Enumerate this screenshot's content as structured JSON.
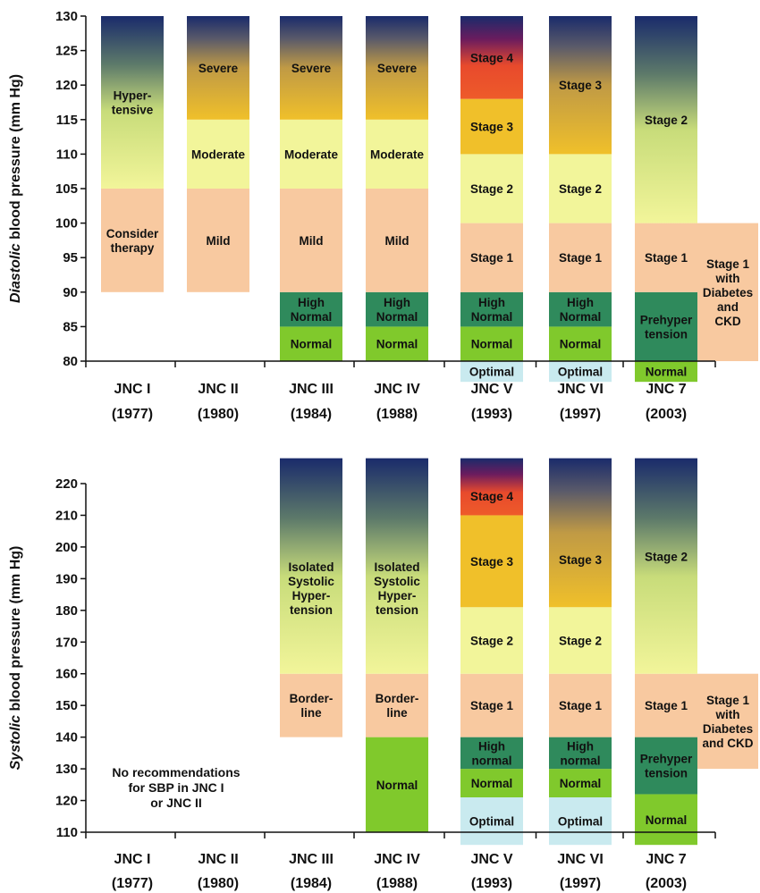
{
  "colors": {
    "peach": "#f8c9a0",
    "paleYellow": "#f2f59a",
    "green": "#80c92c",
    "darkGreen": "#2f8a5c",
    "lightBlue": "#c9eaef",
    "orange": "#f0c02a",
    "red": "#ee5b2a",
    "navy": "#1a2b6b",
    "purple": "#6b1c5e"
  },
  "columns": [
    {
      "name": "JNC I",
      "year": "(1977)"
    },
    {
      "name": "JNC II",
      "year": "(1980)"
    },
    {
      "name": "JNC III",
      "year": "(1984)"
    },
    {
      "name": "JNC IV",
      "year": "(1988)"
    },
    {
      "name": "JNC V",
      "year": "(1993)"
    },
    {
      "name": "JNC VI",
      "year": "(1997)"
    },
    {
      "name": "JNC 7",
      "year": "(2003)"
    }
  ],
  "chart_data": [
    {
      "type": "bar",
      "ylabel_italic": "Diastolic",
      "ylabel_rest": " blood pressure (mm Hg)",
      "ylim": [
        80,
        130
      ],
      "ticks": [
        80,
        85,
        90,
        95,
        100,
        105,
        110,
        115,
        120,
        125,
        130
      ],
      "categories": [
        "JNC I (1977)",
        "JNC II (1980)",
        "JNC III (1984)",
        "JNC IV (1988)",
        "JNC V (1993)",
        "JNC VI (1997)",
        "JNC 7 (2003)"
      ],
      "columns": [
        {
          "bands": [
            {
              "from": 90,
              "to": 105,
              "fill": "peach",
              "label": [
                "Consider",
                "therapy"
              ]
            },
            {
              "from": 105,
              "to": 130,
              "fill": "gradYellowNavy",
              "label": [
                "Hyper-",
                "tensive"
              ]
            }
          ]
        },
        {
          "bands": [
            {
              "from": 90,
              "to": 105,
              "fill": "peach",
              "label": [
                "Mild"
              ]
            },
            {
              "from": 105,
              "to": 115,
              "fill": "paleYellow",
              "label": [
                "Moderate"
              ]
            },
            {
              "from": 115,
              "to": 130,
              "fill": "gradOrangeNavy",
              "label": [
                "Severe"
              ]
            }
          ]
        },
        {
          "bands": [
            {
              "from": 80,
              "to": 85,
              "fill": "green",
              "label": [
                "Normal"
              ]
            },
            {
              "from": 85,
              "to": 90,
              "fill": "darkGreen",
              "label": [
                "High",
                "Normal"
              ]
            },
            {
              "from": 90,
              "to": 105,
              "fill": "peach",
              "label": [
                "Mild"
              ]
            },
            {
              "from": 105,
              "to": 115,
              "fill": "paleYellow",
              "label": [
                "Moderate"
              ]
            },
            {
              "from": 115,
              "to": 130,
              "fill": "gradOrangeNavy",
              "label": [
                "Severe"
              ]
            }
          ]
        },
        {
          "bands": [
            {
              "from": 80,
              "to": 85,
              "fill": "green",
              "label": [
                "Normal"
              ]
            },
            {
              "from": 85,
              "to": 90,
              "fill": "darkGreen",
              "label": [
                "High",
                "Normal"
              ]
            },
            {
              "from": 90,
              "to": 105,
              "fill": "peach",
              "label": [
                "Mild"
              ]
            },
            {
              "from": 105,
              "to": 115,
              "fill": "paleYellow",
              "label": [
                "Moderate"
              ]
            },
            {
              "from": 115,
              "to": 130,
              "fill": "gradOrangeNavy",
              "label": [
                "Severe"
              ]
            }
          ]
        },
        {
          "bands": [
            {
              "from": 77,
              "to": 80,
              "fill": "lightBlue",
              "label": [
                "Optimal"
              ]
            },
            {
              "from": 80,
              "to": 85,
              "fill": "green",
              "label": [
                "Normal"
              ]
            },
            {
              "from": 85,
              "to": 90,
              "fill": "darkGreen",
              "label": [
                "High",
                "Normal"
              ]
            },
            {
              "from": 90,
              "to": 100,
              "fill": "peach",
              "label": [
                "Stage 1"
              ]
            },
            {
              "from": 100,
              "to": 110,
              "fill": "paleYellow",
              "label": [
                "Stage 2"
              ]
            },
            {
              "from": 110,
              "to": 118,
              "fill": "orange",
              "label": [
                "Stage 3"
              ]
            },
            {
              "from": 118,
              "to": 130,
              "fill": "gradRedNavy",
              "label": [
                "Stage 4"
              ]
            }
          ]
        },
        {
          "bands": [
            {
              "from": 77,
              "to": 80,
              "fill": "lightBlue",
              "label": [
                "Optimal"
              ]
            },
            {
              "from": 80,
              "to": 85,
              "fill": "green",
              "label": [
                "Normal"
              ]
            },
            {
              "from": 85,
              "to": 90,
              "fill": "darkGreen",
              "label": [
                "High",
                "Normal"
              ]
            },
            {
              "from": 90,
              "to": 100,
              "fill": "peach",
              "label": [
                "Stage 1"
              ]
            },
            {
              "from": 100,
              "to": 110,
              "fill": "paleYellow",
              "label": [
                "Stage 2"
              ]
            },
            {
              "from": 110,
              "to": 130,
              "fill": "gradOrangeNavy",
              "label": [
                "Stage 3"
              ]
            }
          ]
        },
        {
          "bands": [
            {
              "from": 77,
              "to": 80,
              "fill": "green",
              "label": [
                "Normal"
              ]
            },
            {
              "from": 80,
              "to": 90,
              "fill": "darkGreen",
              "label": [
                "Prehyper",
                "tension"
              ]
            },
            {
              "from": 90,
              "to": 100,
              "fill": "peach",
              "label": [
                "Stage 1"
              ]
            },
            {
              "from": 100,
              "to": 130,
              "fill": "gradYellowNavy",
              "label": [
                "Stage 2"
              ]
            }
          ]
        }
      ],
      "side_box": {
        "from": 80,
        "to": 100,
        "fill": "peach",
        "label": [
          "Stage 1",
          "with",
          "Diabetes",
          "and",
          "CKD"
        ]
      }
    },
    {
      "type": "bar",
      "ylabel_italic": "Systolic",
      "ylabel_rest": " blood pressure (mm Hg)",
      "ylim": [
        110,
        220
      ],
      "ticks": [
        110,
        120,
        130,
        140,
        150,
        160,
        170,
        180,
        190,
        200,
        210,
        220
      ],
      "categories": [
        "JNC I (1977)",
        "JNC II (1980)",
        "JNC III (1984)",
        "JNC IV (1988)",
        "JNC V (1993)",
        "JNC VI (1997)",
        "JNC 7 (2003)"
      ],
      "note": [
        "No recommendations",
        "for SBP in JNC I",
        "or JNC II"
      ],
      "columns": [
        {
          "bands": []
        },
        {
          "bands": []
        },
        {
          "bands": [
            {
              "from": 140,
              "to": 160,
              "fill": "peach",
              "label": [
                "Border-",
                "line"
              ]
            },
            {
              "from": 160,
              "to": 228,
              "fill": "gradYellowNavy",
              "label": [
                "Isolated",
                "Systolic",
                "Hyper-",
                "tension"
              ],
              "labelAt": 187
            }
          ]
        },
        {
          "bands": [
            {
              "from": 110,
              "to": 140,
              "fill": "green",
              "label": [
                "Normal"
              ]
            },
            {
              "from": 140,
              "to": 160,
              "fill": "peach",
              "label": [
                "Border-",
                "line"
              ]
            },
            {
              "from": 160,
              "to": 228,
              "fill": "gradYellowNavy",
              "label": [
                "Isolated",
                "Systolic",
                "Hyper-",
                "tension"
              ],
              "labelAt": 187
            }
          ]
        },
        {
          "bands": [
            {
              "from": 106,
              "to": 121,
              "fill": "lightBlue",
              "label": [
                "Optimal"
              ]
            },
            {
              "from": 121,
              "to": 130,
              "fill": "green",
              "label": [
                "Normal"
              ]
            },
            {
              "from": 130,
              "to": 140,
              "fill": "darkGreen",
              "label": [
                "High",
                "normal"
              ]
            },
            {
              "from": 140,
              "to": 160,
              "fill": "peach",
              "label": [
                "Stage 1"
              ]
            },
            {
              "from": 160,
              "to": 181,
              "fill": "paleYellow",
              "label": [
                "Stage 2"
              ]
            },
            {
              "from": 181,
              "to": 210,
              "fill": "orange",
              "label": [
                "Stage 3"
              ]
            },
            {
              "from": 210,
              "to": 228,
              "fill": "gradRedNavy",
              "label": [
                "Stage 4"
              ],
              "labelAt": 216
            }
          ]
        },
        {
          "bands": [
            {
              "from": 106,
              "to": 121,
              "fill": "lightBlue",
              "label": [
                "Optimal"
              ]
            },
            {
              "from": 121,
              "to": 130,
              "fill": "green",
              "label": [
                "Normal"
              ]
            },
            {
              "from": 130,
              "to": 140,
              "fill": "darkGreen",
              "label": [
                "High",
                "normal"
              ]
            },
            {
              "from": 140,
              "to": 160,
              "fill": "peach",
              "label": [
                "Stage 1"
              ]
            },
            {
              "from": 160,
              "to": 181,
              "fill": "paleYellow",
              "label": [
                "Stage 2"
              ]
            },
            {
              "from": 181,
              "to": 228,
              "fill": "gradOrangeNavy",
              "label": [
                "Stage 3"
              ],
              "labelAt": 196
            }
          ]
        },
        {
          "bands": [
            {
              "from": 106,
              "to": 122,
              "fill": "green",
              "label": [
                "Normal"
              ]
            },
            {
              "from": 122,
              "to": 140,
              "fill": "darkGreen",
              "label": [
                "Prehyper",
                "tension"
              ]
            },
            {
              "from": 140,
              "to": 160,
              "fill": "peach",
              "label": [
                "Stage 1"
              ]
            },
            {
              "from": 160,
              "to": 228,
              "fill": "gradYellowNavy",
              "label": [
                "Stage 2"
              ],
              "labelAt": 197
            }
          ]
        }
      ],
      "side_box": {
        "from": 130,
        "to": 160,
        "fill": "peach",
        "label": [
          "Stage 1",
          "with",
          "Diabetes",
          "and CKD"
        ]
      }
    }
  ]
}
